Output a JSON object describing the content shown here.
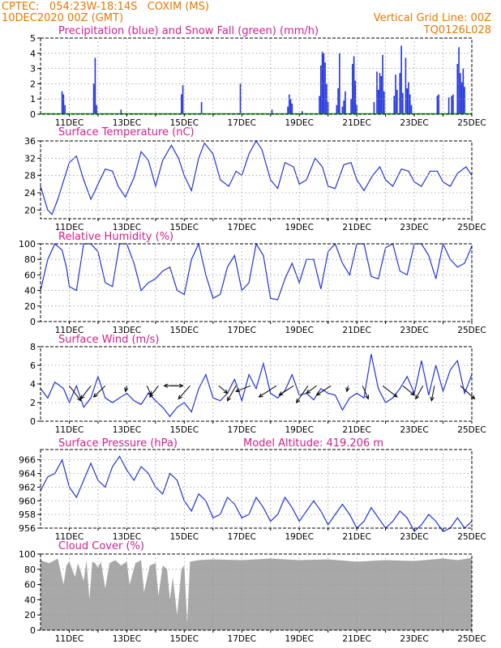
{
  "header": {
    "line1": "CPTEC:   054:23W-18:14S   COXIM (MS)",
    "line2": "10DEC2020 00Z (GMT)",
    "grid_note": "Vertical Grid Line: 00Z",
    "run_id": "TQ0126L028"
  },
  "colors": {
    "header": "#e87800",
    "titles": "#d0208c",
    "line": "#2233dd",
    "snow": "#00aa00",
    "wind_arrow": "#000000",
    "cloud": "#a8a8a8",
    "grid": "#999999"
  },
  "x_axis": {
    "labels": [
      "11DEC",
      "13DEC",
      "15DEC",
      "17DEC",
      "19DEC",
      "21DEC",
      "23DEC",
      "25DEC"
    ],
    "label_days": [
      1,
      3,
      5,
      7,
      9,
      11,
      13,
      15
    ],
    "range_days": [
      0,
      15
    ]
  },
  "chart_data": [
    {
      "id": "precip",
      "type": "bar",
      "title": "Precipitation (blue) and Snow Fall (green) (mm/h)",
      "ylim": [
        0,
        5
      ],
      "yticks": [
        "0",
        "1",
        "2",
        "3",
        "4",
        "5"
      ],
      "ytick_values": [
        0,
        1,
        2,
        3,
        4,
        5
      ],
      "series": [
        {
          "name": "Precipitation",
          "x": [
            0.75,
            0.8,
            0.85,
            1.85,
            1.9,
            1.95,
            2.8,
            4.9,
            4.95,
            5.6,
            6.95,
            8.05,
            8.6,
            8.65,
            8.7,
            8.75,
            9.1,
            9.7,
            9.75,
            9.8,
            9.85,
            9.9,
            9.95,
            10.0,
            10.3,
            10.35,
            10.4,
            10.5,
            10.55,
            10.6,
            10.8,
            10.85,
            10.9,
            10.95,
            11.0,
            11.6,
            11.7,
            11.75,
            11.8,
            11.85,
            11.9,
            11.95,
            12.3,
            12.35,
            12.4,
            12.5,
            12.55,
            12.6,
            12.7,
            12.75,
            12.8,
            12.85,
            12.9,
            13.8,
            13.85,
            14.2,
            14.3,
            14.35,
            14.5,
            14.55,
            14.6,
            14.65,
            14.7,
            14.75
          ],
          "values": [
            1.5,
            1.3,
            0.6,
            2.0,
            3.7,
            0.6,
            0.3,
            1.3,
            1.9,
            0.8,
            2.0,
            0.3,
            0.5,
            1.3,
            1.0,
            0.7,
            0.2,
            1.2,
            3.2,
            4.1,
            4.0,
            3.4,
            2.0,
            0.8,
            0.6,
            1.7,
            4.0,
            0.5,
            0.9,
            1.5,
            1.0,
            3.3,
            3.8,
            2.2,
            0.6,
            0.8,
            2.8,
            1.6,
            2.7,
            2.5,
            3.9,
            1.5,
            1.2,
            2.6,
            1.6,
            2.7,
            4.5,
            1.4,
            3.7,
            1.7,
            2.1,
            1.3,
            0.6,
            1.2,
            1.3,
            1.1,
            1.2,
            1.3,
            3.3,
            4.4,
            2.7,
            2.1,
            3.0,
            1.8
          ]
        },
        {
          "name": "Snow Fall",
          "x": [
            0,
            15
          ],
          "values": [
            0,
            0
          ]
        }
      ]
    },
    {
      "id": "temp",
      "type": "line",
      "title": "Surface Temperature (nC)",
      "ylim": [
        18,
        36
      ],
      "yticks": [
        "20",
        "24",
        "28",
        "32",
        "36"
      ],
      "ytick_values": [
        20,
        24,
        28,
        32,
        36
      ],
      "x": [
        0,
        0.25,
        0.4,
        0.6,
        1.0,
        1.25,
        1.5,
        1.75,
        1.9,
        2.0,
        2.25,
        2.5,
        2.7,
        2.95,
        3.25,
        3.5,
        3.75,
        3.9,
        4.0,
        4.25,
        4.55,
        4.8,
        5.0,
        5.25,
        5.5,
        5.7,
        6.0,
        6.25,
        6.55,
        6.8,
        7.0,
        7.25,
        7.5,
        7.7,
        8.0,
        8.25,
        8.5,
        8.8,
        9.0,
        9.25,
        9.55,
        9.8,
        10.0,
        10.25,
        10.55,
        10.8,
        11.0,
        11.25,
        11.55,
        11.8,
        12.0,
        12.25,
        12.55,
        12.8,
        13.0,
        13.25,
        13.55,
        13.8,
        14.0,
        14.25,
        14.5,
        14.8,
        15.0
      ],
      "values": [
        25.5,
        20,
        19,
        22.5,
        31,
        32.5,
        27,
        22.5,
        24.5,
        26,
        29.5,
        29,
        25.5,
        23,
        27.5,
        33.5,
        31.5,
        28,
        25.5,
        31.5,
        35,
        32,
        28,
        24.5,
        32,
        35.5,
        33,
        27,
        25.5,
        29,
        28,
        33,
        36,
        34,
        27,
        25,
        31,
        30,
        26,
        27,
        32,
        30,
        25.5,
        25,
        30.5,
        31,
        27,
        24.5,
        28,
        30,
        27,
        25.5,
        29.5,
        29,
        26.5,
        25.5,
        29,
        29,
        26.5,
        25.5,
        28.5,
        30,
        28
      ]
    },
    {
      "id": "rh",
      "type": "line",
      "title": "Relative Humidity (%)",
      "ylim": [
        0,
        100
      ],
      "yticks": [
        "0",
        "20",
        "40",
        "60",
        "80",
        "100"
      ],
      "ytick_values": [
        0,
        20,
        40,
        60,
        80,
        100
      ],
      "x": [
        0,
        0.25,
        0.5,
        0.75,
        0.9,
        1.0,
        1.25,
        1.5,
        1.75,
        2.0,
        2.25,
        2.5,
        2.75,
        3.0,
        3.25,
        3.5,
        3.75,
        4.0,
        4.25,
        4.5,
        4.75,
        5.0,
        5.25,
        5.5,
        5.75,
        6.0,
        6.25,
        6.5,
        6.75,
        7.0,
        7.25,
        7.5,
        7.75,
        8.0,
        8.25,
        8.5,
        8.75,
        9.0,
        9.25,
        9.5,
        9.75,
        10.0,
        10.25,
        10.5,
        10.75,
        11.0,
        11.25,
        11.5,
        11.75,
        12.0,
        12.25,
        12.5,
        12.75,
        13.0,
        13.25,
        13.5,
        13.75,
        14.0,
        14.25,
        14.5,
        14.75,
        15.0
      ],
      "values": [
        40,
        80,
        100,
        92,
        70,
        45,
        40,
        100,
        100,
        90,
        50,
        45,
        100,
        100,
        75,
        40,
        50,
        55,
        65,
        70,
        40,
        35,
        80,
        100,
        60,
        30,
        35,
        70,
        85,
        40,
        50,
        100,
        85,
        30,
        28,
        55,
        75,
        50,
        80,
        80,
        42,
        90,
        100,
        75,
        60,
        100,
        100,
        58,
        55,
        95,
        100,
        65,
        60,
        100,
        100,
        85,
        55,
        100,
        80,
        70,
        75,
        97
      ]
    },
    {
      "id": "wind",
      "type": "line",
      "title": "Surface Wind (m/s)",
      "ylim": [
        0,
        8
      ],
      "yticks": [
        "0",
        "2",
        "4",
        "6",
        "8"
      ],
      "ytick_values": [
        0,
        2,
        4,
        6,
        8
      ],
      "x": [
        0,
        0.25,
        0.5,
        0.8,
        1.0,
        1.25,
        1.5,
        1.75,
        2.0,
        2.25,
        2.5,
        2.75,
        3.0,
        3.25,
        3.5,
        3.75,
        4.0,
        4.25,
        4.5,
        4.75,
        5.0,
        5.25,
        5.5,
        5.75,
        6.0,
        6.25,
        6.5,
        6.75,
        7.0,
        7.25,
        7.5,
        7.75,
        8.0,
        8.25,
        8.5,
        8.75,
        9.0,
        9.25,
        9.5,
        9.75,
        10.0,
        10.25,
        10.5,
        10.75,
        11.0,
        11.25,
        11.5,
        11.75,
        12.0,
        12.25,
        12.5,
        12.75,
        13.0,
        13.25,
        13.5,
        13.75,
        14.0,
        14.25,
        14.5,
        14.75,
        15.0
      ],
      "values": [
        3.5,
        2.5,
        4.2,
        3.5,
        2.0,
        3.8,
        1.5,
        2.5,
        4.8,
        2.5,
        2.0,
        2.5,
        3.0,
        2.2,
        1.8,
        3.0,
        2.2,
        1.5,
        0.5,
        1.5,
        2.0,
        1.0,
        3.5,
        5.0,
        2.5,
        2.2,
        3.0,
        4.5,
        2.2,
        5.0,
        3.5,
        6.2,
        3.0,
        2.5,
        3.3,
        5.0,
        2.8,
        3.0,
        2.3,
        3.5,
        3.0,
        2.8,
        1.2,
        2.5,
        3.0,
        2.5,
        7.2,
        3.5,
        2.0,
        2.5,
        3.5,
        4.8,
        3.0,
        6.5,
        2.8,
        6.0,
        3.2,
        5.5,
        6.5,
        3.0,
        5.0
      ],
      "arrows": {
        "x": [
          1.0,
          1.75,
          2.25,
          3.0,
          3.7,
          4.1,
          4.5,
          4.8,
          5.2,
          6.2,
          6.8,
          7.3,
          8.2,
          8.8,
          9.3,
          9.6,
          10.1,
          10.7,
          11.2,
          11.9,
          12.6,
          13.3,
          13.7,
          14.6
        ],
        "dx": [
          0.4,
          -0.35,
          -0.4,
          -0.05,
          0.15,
          -0.3,
          0.45,
          -0.5,
          -0.4,
          0.3,
          -0.3,
          -0.5,
          -0.6,
          -0.5,
          -0.4,
          -0.35,
          -0.5,
          -0.05,
          0.2,
          0.5,
          0.4,
          -0.25,
          -0.1,
          0.5
        ],
        "dy": [
          -0.8,
          -0.7,
          -0.6,
          -0.3,
          -0.5,
          -0.6,
          0.0,
          0.0,
          -0.7,
          -0.4,
          -0.8,
          -0.3,
          -0.6,
          -0.5,
          -0.9,
          -0.4,
          -0.5,
          -0.3,
          -0.7,
          -0.6,
          -0.5,
          -0.7,
          -0.8,
          -0.7
        ]
      }
    },
    {
      "id": "pres",
      "type": "line",
      "title": "Surface Pressure (hPa)",
      "subtitle": "Model Altitude: 419.206 m",
      "ylim": [
        956,
        967.5
      ],
      "yticks": [
        "956",
        "958",
        "960",
        "962",
        "964",
        "966"
      ],
      "ytick_values": [
        956,
        958,
        960,
        962,
        964,
        966
      ],
      "x": [
        0,
        0.25,
        0.5,
        0.75,
        1.0,
        1.25,
        1.5,
        1.75,
        2.0,
        2.25,
        2.5,
        2.75,
        3.0,
        3.25,
        3.5,
        3.75,
        4.0,
        4.25,
        4.5,
        4.75,
        5.0,
        5.25,
        5.5,
        5.75,
        6.0,
        6.25,
        6.5,
        6.75,
        7.0,
        7.25,
        7.5,
        7.75,
        8.0,
        8.25,
        8.5,
        8.75,
        9.0,
        9.25,
        9.5,
        9.75,
        10.0,
        10.25,
        10.5,
        10.75,
        11.0,
        11.25,
        11.5,
        11.75,
        12.0,
        12.25,
        12.5,
        12.75,
        13.0,
        13.25,
        13.5,
        13.75,
        14.0,
        14.25,
        14.5,
        14.75,
        15.0
      ],
      "values": [
        961.5,
        963.5,
        964,
        966,
        962,
        960.5,
        963,
        965.5,
        963,
        962,
        965,
        966.5,
        964.5,
        963,
        965,
        964,
        962,
        961,
        964,
        963,
        960,
        958.5,
        961,
        960,
        957.5,
        958,
        960.5,
        959.5,
        957.5,
        958,
        960.5,
        959,
        957,
        958,
        960.5,
        959,
        957,
        958.5,
        960,
        958.5,
        956.5,
        958,
        959.5,
        958,
        956,
        957,
        959,
        957.5,
        956,
        957,
        958.5,
        957.5,
        955.5,
        956.5,
        958,
        957,
        955.5,
        956,
        957.5,
        956,
        957
      ]
    },
    {
      "id": "cloud",
      "type": "area",
      "title": "Cloud Cover (%)",
      "ylim": [
        0,
        100
      ],
      "yticks": [
        "0",
        "20",
        "40",
        "60",
        "80",
        "100"
      ],
      "ytick_values": [
        0,
        20,
        40,
        60,
        80,
        100
      ],
      "x": [
        0,
        0.3,
        0.6,
        0.8,
        0.9,
        1.0,
        1.1,
        1.2,
        1.3,
        1.5,
        1.6,
        1.7,
        1.8,
        1.9,
        2.0,
        2.1,
        2.25,
        2.4,
        2.6,
        2.8,
        3.0,
        3.1,
        3.3,
        3.5,
        3.6,
        3.8,
        4.0,
        4.1,
        4.25,
        4.4,
        4.5,
        4.6,
        4.75,
        4.9,
        5.0,
        5.1,
        5.2,
        5.5,
        6.0,
        7.0,
        8.0,
        9.0,
        10.0,
        11.0,
        12.0,
        13.0,
        14.0,
        14.5,
        15.0
      ],
      "values": [
        92,
        88,
        94,
        60,
        85,
        90,
        80,
        70,
        88,
        65,
        92,
        40,
        90,
        88,
        82,
        90,
        55,
        88,
        92,
        85,
        90,
        60,
        88,
        92,
        50,
        85,
        88,
        45,
        85,
        80,
        40,
        70,
        20,
        80,
        85,
        10,
        90,
        92,
        93,
        92,
        94,
        92,
        93,
        90,
        92,
        91,
        94,
        92,
        95
      ]
    }
  ]
}
